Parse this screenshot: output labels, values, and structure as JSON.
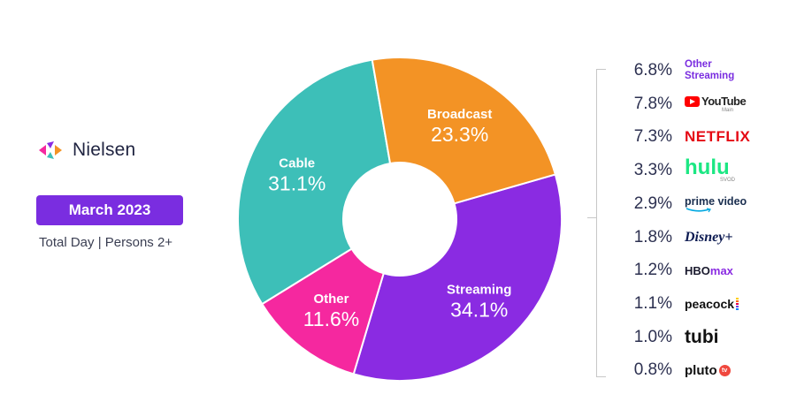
{
  "brand": {
    "name": "Nielsen"
  },
  "badge": {
    "label": "March 2023"
  },
  "subtitle": "Total Day | Persons 2+",
  "colors": {
    "streaming": "#8a2be2",
    "broadcast": "#f39325",
    "cable": "#3dbfb8",
    "other": "#f5289f",
    "badge": "#7a2de0"
  },
  "chart_data": {
    "type": "pie",
    "donut": true,
    "slices": [
      {
        "label": "Streaming",
        "value": 34.1,
        "display": "34.1%"
      },
      {
        "label": "Other",
        "value": 11.6,
        "display": "11.6%"
      },
      {
        "label": "Cable",
        "value": 31.1,
        "display": "31.1%"
      },
      {
        "label": "Broadcast",
        "value": 23.3,
        "display": "23.3%"
      }
    ],
    "streaming_breakdown": [
      {
        "platform": "Other Streaming",
        "value": 6.8,
        "display": "6.8%"
      },
      {
        "platform": "YouTube",
        "sublabel": "Main",
        "value": 7.8,
        "display": "7.8%"
      },
      {
        "platform": "NETFLIX",
        "value": 7.3,
        "display": "7.3%"
      },
      {
        "platform": "hulu",
        "sublabel": "SVOD",
        "value": 3.3,
        "display": "3.3%"
      },
      {
        "platform": "prime video",
        "value": 2.9,
        "display": "2.9%"
      },
      {
        "platform": "Disney+",
        "value": 1.8,
        "display": "1.8%"
      },
      {
        "platform": "HBO max",
        "value": 1.2,
        "display": "1.2%"
      },
      {
        "platform": "peacock",
        "value": 1.1,
        "display": "1.1%"
      },
      {
        "platform": "tubi",
        "value": 1.0,
        "display": "1.0%"
      },
      {
        "platform": "pluto tv",
        "value": 0.8,
        "display": "0.8%"
      }
    ]
  }
}
